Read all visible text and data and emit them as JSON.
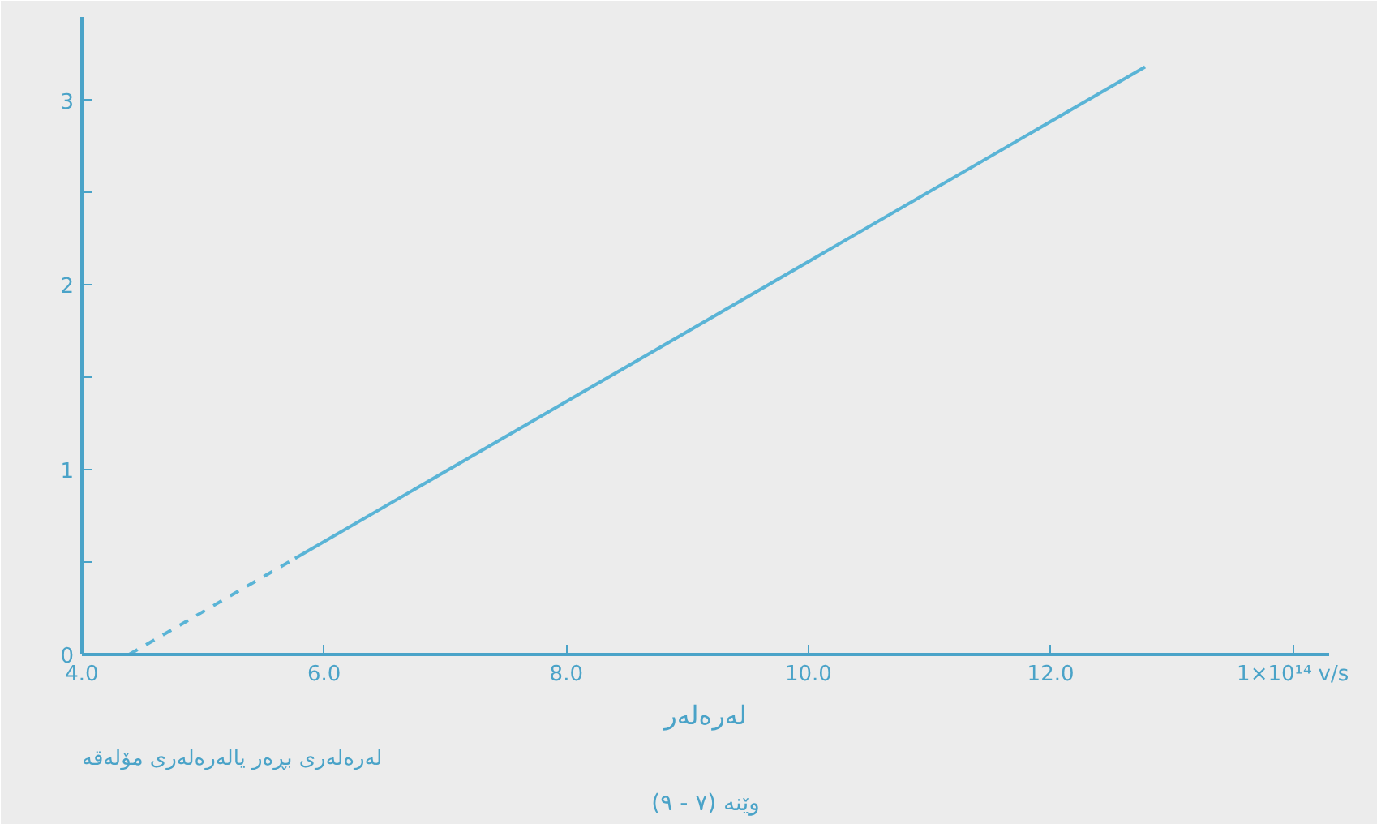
{
  "chart_data": {
    "type": "line",
    "title": "وێنە (٧ - ٩)",
    "xlabel": "لەرەلەر",
    "annotations": [
      "لەرەلەری بڕەر یالەرەلەری مۆلەقە"
    ],
    "series": [
      {
        "color": "#5ab4d6",
        "x": [
          4.39,
          5.76
        ],
        "values": [
          0,
          0.52
        ],
        "line_style": "dashed"
      },
      {
        "color": "#5ab4d6",
        "x": [
          5.76,
          12.78
        ],
        "values": [
          0.52,
          3.18
        ],
        "line_style": "solid"
      }
    ],
    "xlim": [
      4.0,
      14.3
    ],
    "ylim": [
      0,
      3.45
    ],
    "xticks": [
      {
        "value": 4,
        "label": "4.0"
      },
      {
        "value": 6,
        "label": "6.0"
      },
      {
        "value": 8,
        "label": "8.0"
      },
      {
        "value": 10,
        "label": "10.0"
      },
      {
        "value": 12,
        "label": "12.0"
      },
      {
        "value": 14,
        "label": "1×10¹⁴ v/s"
      }
    ],
    "yticks": [
      0,
      {
        "value": 0.5,
        "label": null
      },
      1,
      {
        "value": 1.5,
        "label": null
      },
      2,
      {
        "value": 2.5,
        "label": null
      },
      3
    ],
    "grid": false
  }
}
